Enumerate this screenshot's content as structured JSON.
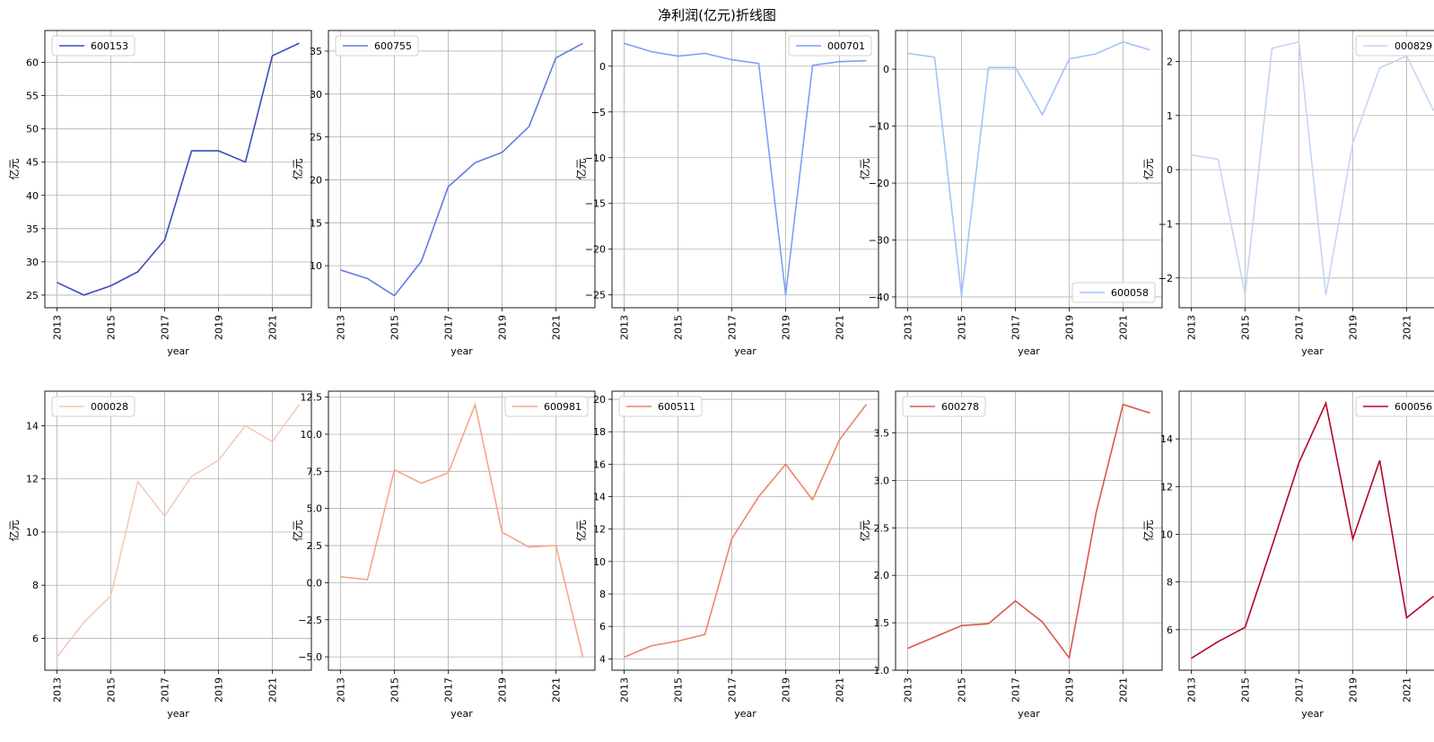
{
  "figure": {
    "title": "净利润(亿元)折线图"
  },
  "chart_data": [
    {
      "type": "line",
      "series": [
        {
          "name": "600153",
          "x": [
            2013,
            2014,
            2015,
            2016,
            2017,
            2018,
            2019,
            2020,
            2021,
            2022
          ],
          "values": [
            26.9,
            25.0,
            26.4,
            28.5,
            33.3,
            46.7,
            46.7,
            45.0,
            61.0,
            62.9
          ],
          "color": "#3b4cc0"
        }
      ],
      "xlabel": "year",
      "ylabel": "亿元",
      "xlim": [
        2012.55,
        2022.45
      ],
      "ylim": [
        23.1,
        64.8
      ],
      "xticks": [
        2013,
        2015,
        2017,
        2019,
        2021
      ],
      "yticks": [
        25,
        30,
        35,
        40,
        45,
        50,
        55,
        60
      ],
      "ytick_labels": [
        "25",
        "30",
        "35",
        "40",
        "45",
        "50",
        "55",
        "60"
      ],
      "legend": "upper left",
      "grid": true
    },
    {
      "type": "line",
      "series": [
        {
          "name": "600755",
          "x": [
            2013,
            2014,
            2015,
            2016,
            2017,
            2018,
            2019,
            2020,
            2021,
            2022
          ],
          "values": [
            9.5,
            8.5,
            6.5,
            10.5,
            19.2,
            22.0,
            23.2,
            26.2,
            34.2,
            35.9
          ],
          "color": "#5e7ce2"
        }
      ],
      "xlabel": "year",
      "ylabel": "亿元",
      "xlim": [
        2012.55,
        2022.45
      ],
      "ylim": [
        5.1,
        37.4
      ],
      "xticks": [
        2013,
        2015,
        2017,
        2019,
        2021
      ],
      "yticks": [
        10,
        15,
        20,
        25,
        30,
        35
      ],
      "ytick_labels": [
        "10",
        "15",
        "20",
        "25",
        "30",
        "35"
      ],
      "legend": "upper left",
      "grid": true
    },
    {
      "type": "line",
      "series": [
        {
          "name": "000701",
          "x": [
            2013,
            2014,
            2015,
            2016,
            2017,
            2018,
            2019,
            2020,
            2021,
            2022
          ],
          "values": [
            2.5,
            1.6,
            1.1,
            1.4,
            0.7,
            0.3,
            -25.0,
            0.1,
            0.5,
            0.6
          ],
          "color": "#7b9ff9"
        }
      ],
      "xlabel": "year",
      "ylabel": "亿元",
      "xlim": [
        2012.55,
        2022.45
      ],
      "ylim": [
        -26.4,
        3.9
      ],
      "xticks": [
        2013,
        2015,
        2017,
        2019,
        2021
      ],
      "yticks": [
        -25,
        -20,
        -15,
        -10,
        -5,
        0
      ],
      "ytick_labels": [
        "−25",
        "−20",
        "−15",
        "−10",
        "−5",
        "0"
      ],
      "legend": "upper right",
      "grid": true
    },
    {
      "type": "line",
      "series": [
        {
          "name": "600058",
          "x": [
            2013,
            2014,
            2015,
            2016,
            2017,
            2018,
            2019,
            2020,
            2021,
            2022
          ],
          "values": [
            2.8,
            2.1,
            -39.8,
            0.3,
            0.3,
            -8.0,
            1.8,
            2.7,
            4.8,
            3.4
          ],
          "color": "#a3c2fe"
        }
      ],
      "xlabel": "year",
      "ylabel": "亿元",
      "xlim": [
        2012.55,
        2022.45
      ],
      "ylim": [
        -41.9,
        6.8
      ],
      "xticks": [
        2013,
        2015,
        2017,
        2019,
        2021
      ],
      "yticks": [
        -40,
        -30,
        -20,
        -10,
        0
      ],
      "ytick_labels": [
        "−40",
        "−30",
        "−20",
        "−10",
        "0"
      ],
      "legend": "lower right",
      "grid": true
    },
    {
      "type": "line",
      "series": [
        {
          "name": "000829",
          "x": [
            2013,
            2014,
            2015,
            2016,
            2017,
            2018,
            2019,
            2020,
            2021,
            2022
          ],
          "values": [
            0.27,
            0.19,
            -2.3,
            2.24,
            2.36,
            -2.32,
            0.49,
            1.88,
            2.1,
            1.09
          ],
          "color": "#c5d6f2"
        }
      ],
      "xlabel": "year",
      "ylabel": "亿元",
      "xlim": [
        2012.55,
        2022.45
      ],
      "ylim": [
        -2.55,
        2.57
      ],
      "xticks": [
        2013,
        2015,
        2017,
        2019,
        2021
      ],
      "yticks": [
        -2,
        -1,
        0,
        1,
        2
      ],
      "ytick_labels": [
        "−2",
        "−1",
        "0",
        "1",
        "2"
      ],
      "legend": "upper right",
      "grid": true
    },
    {
      "type": "line",
      "series": [
        {
          "name": "000028",
          "x": [
            2013,
            2014,
            2015,
            2016,
            2017,
            2018,
            2019,
            2020,
            2021,
            2022
          ],
          "values": [
            5.3,
            6.6,
            7.6,
            11.9,
            10.6,
            12.1,
            12.7,
            14.0,
            13.4,
            14.8
          ],
          "color": "#f2cbb7"
        }
      ],
      "xlabel": "year",
      "ylabel": "亿元",
      "xlim": [
        2012.55,
        2022.45
      ],
      "ylim": [
        4.8,
        15.3
      ],
      "xticks": [
        2013,
        2015,
        2017,
        2019,
        2021
      ],
      "yticks": [
        6,
        8,
        10,
        12,
        14
      ],
      "ytick_labels": [
        "6",
        "8",
        "10",
        "12",
        "14"
      ],
      "legend": "upper left",
      "grid": true
    },
    {
      "type": "line",
      "series": [
        {
          "name": "600981",
          "x": [
            2013,
            2014,
            2015,
            2016,
            2017,
            2018,
            2019,
            2020,
            2021,
            2022
          ],
          "values": [
            0.4,
            0.2,
            7.6,
            6.7,
            7.4,
            12.0,
            3.4,
            2.4,
            2.5,
            -5.0
          ],
          "color": "#f6a68b"
        }
      ],
      "xlabel": "year",
      "ylabel": "亿元",
      "xlim": [
        2012.55,
        2022.45
      ],
      "ylim": [
        -5.9,
        12.9
      ],
      "xticks": [
        2013,
        2015,
        2017,
        2019,
        2021
      ],
      "yticks": [
        -5,
        -2.5,
        0,
        2.5,
        5,
        7.5,
        10,
        12.5
      ],
      "ytick_labels": [
        "−5.0",
        "−2.5",
        "0.0",
        "2.5",
        "5.0",
        "7.5",
        "10.0",
        "12.5"
      ],
      "legend": "upper right",
      "grid": true
    },
    {
      "type": "line",
      "series": [
        {
          "name": "600511",
          "x": [
            2013,
            2014,
            2015,
            2016,
            2017,
            2018,
            2019,
            2020,
            2021,
            2022
          ],
          "values": [
            4.1,
            4.8,
            5.1,
            5.5,
            11.4,
            14.0,
            16.0,
            13.8,
            17.5,
            19.7
          ],
          "color": "#ee8468"
        }
      ],
      "xlabel": "year",
      "ylabel": "亿元",
      "xlim": [
        2012.55,
        2022.45
      ],
      "ylim": [
        3.3,
        20.5
      ],
      "xticks": [
        2013,
        2015,
        2017,
        2019,
        2021
      ],
      "yticks": [
        4,
        6,
        8,
        10,
        12,
        14,
        16,
        18,
        20
      ],
      "ytick_labels": [
        "4",
        "6",
        "8",
        "10",
        "12",
        "14",
        "16",
        "18",
        "20"
      ],
      "legend": "upper left",
      "grid": true
    },
    {
      "type": "line",
      "series": [
        {
          "name": "600278",
          "x": [
            2013,
            2014,
            2015,
            2016,
            2017,
            2018,
            2019,
            2020,
            2021,
            2022
          ],
          "values": [
            1.23,
            1.35,
            1.47,
            1.49,
            1.73,
            1.51,
            1.13,
            2.66,
            3.8,
            3.71
          ],
          "color": "#d95847"
        }
      ],
      "xlabel": "year",
      "ylabel": "亿元",
      "xlim": [
        2012.55,
        2022.45
      ],
      "ylim": [
        1.0,
        3.94
      ],
      "xticks": [
        2013,
        2015,
        2017,
        2019,
        2021
      ],
      "yticks": [
        1.0,
        1.5,
        2.0,
        2.5,
        3.0,
        3.5
      ],
      "ytick_labels": [
        "1.0",
        "1.5",
        "2.0",
        "2.5",
        "3.0",
        "3.5"
      ],
      "legend": "upper left",
      "grid": true
    },
    {
      "type": "line",
      "series": [
        {
          "name": "600056",
          "x": [
            2013,
            2014,
            2015,
            2016,
            2017,
            2018,
            2019,
            2020,
            2021,
            2022
          ],
          "values": [
            4.8,
            5.5,
            6.1,
            9.5,
            13.0,
            15.5,
            9.8,
            13.1,
            6.5,
            7.4
          ],
          "color": "#b40426"
        }
      ],
      "xlabel": "year",
      "ylabel": "亿元",
      "xlim": [
        2012.55,
        2022.45
      ],
      "ylim": [
        4.3,
        16.0
      ],
      "xticks": [
        2013,
        2015,
        2017,
        2019,
        2021
      ],
      "yticks": [
        6,
        8,
        10,
        12,
        14
      ],
      "ytick_labels": [
        "6",
        "8",
        "10",
        "12",
        "14"
      ],
      "legend": "upper right",
      "grid": true
    }
  ]
}
